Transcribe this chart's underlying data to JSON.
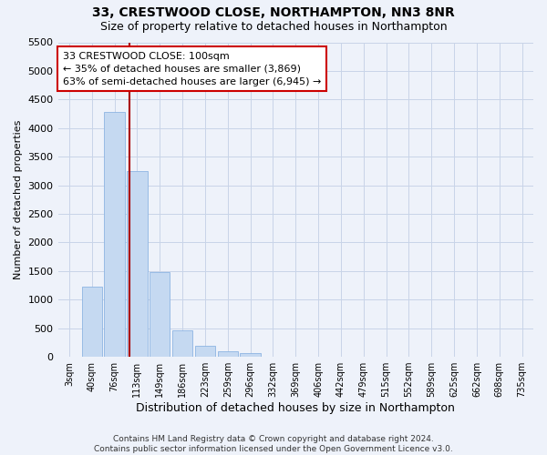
{
  "title": "33, CRESTWOOD CLOSE, NORTHAMPTON, NN3 8NR",
  "subtitle": "Size of property relative to detached houses in Northampton",
  "xlabel": "Distribution of detached houses by size in Northampton",
  "ylabel": "Number of detached properties",
  "footer_line1": "Contains HM Land Registry data © Crown copyright and database right 2024.",
  "footer_line2": "Contains public sector information licensed under the Open Government Licence v3.0.",
  "bar_color": "#c5d9f1",
  "bar_edge_color": "#8db4e2",
  "grid_color": "#c8d4e8",
  "categories": [
    "3sqm",
    "40sqm",
    "76sqm",
    "113sqm",
    "149sqm",
    "186sqm",
    "223sqm",
    "259sqm",
    "296sqm",
    "332sqm",
    "369sqm",
    "406sqm",
    "442sqm",
    "479sqm",
    "515sqm",
    "552sqm",
    "589sqm",
    "625sqm",
    "662sqm",
    "698sqm",
    "735sqm"
  ],
  "values": [
    0,
    1230,
    4280,
    3250,
    1480,
    470,
    200,
    100,
    70,
    0,
    0,
    0,
    0,
    0,
    0,
    0,
    0,
    0,
    0,
    0,
    0
  ],
  "ylim": [
    0,
    5500
  ],
  "yticks": [
    0,
    500,
    1000,
    1500,
    2000,
    2500,
    3000,
    3500,
    4000,
    4500,
    5000,
    5500
  ],
  "property_label": "33 CRESTWOOD CLOSE: 100sqm",
  "annotation_line1": "← 35% of detached houses are smaller (3,869)",
  "annotation_line2": "63% of semi-detached houses are larger (6,945) →",
  "vline_color": "#aa0000",
  "annotation_box_facecolor": "#ffffff",
  "annotation_box_edgecolor": "#cc0000",
  "background_color": "#eef2fa",
  "title_fontsize": 10,
  "subtitle_fontsize": 9,
  "ylabel_fontsize": 8,
  "xlabel_fontsize": 9,
  "ytick_fontsize": 8,
  "xtick_fontsize": 7,
  "annotation_fontsize": 8,
  "footer_fontsize": 6.5
}
